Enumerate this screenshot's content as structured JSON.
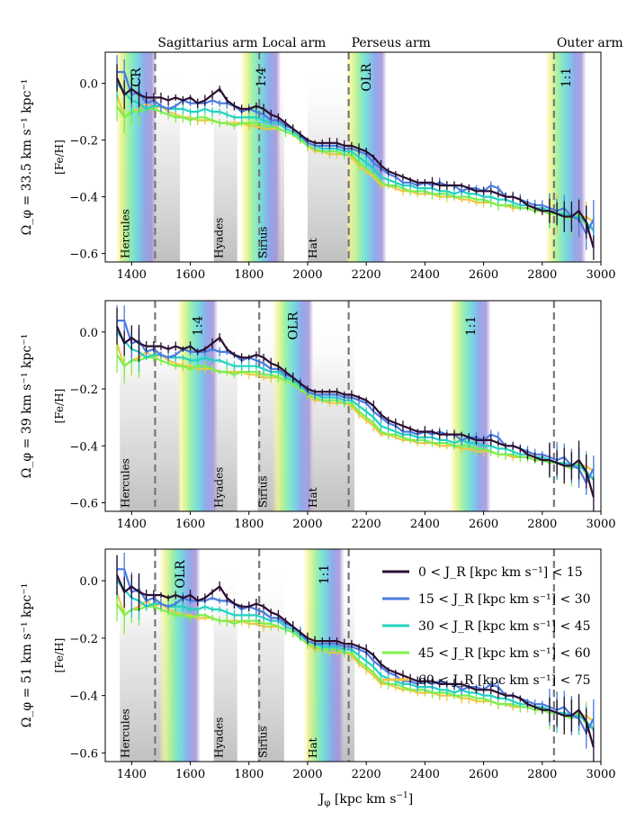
{
  "chart_data": {
    "type": "line",
    "xlabel": "J_φ [kpc km s⁻¹]",
    "ylabel": "[Fe/H]",
    "xlim": [
      1310,
      3000
    ],
    "ylim": [
      -0.63,
      0.11
    ],
    "xticks": [
      1400,
      1600,
      1800,
      2000,
      2200,
      2400,
      2600,
      2800,
      3000
    ],
    "yticks": [
      0.0,
      -0.2,
      -0.4,
      -0.6
    ],
    "ytick_labels": [
      "0.0",
      "−0.2",
      "−0.4",
      "−0.6"
    ],
    "arms": [
      {
        "name": "Sagittarius arm",
        "x": 1480
      },
      {
        "name": "Local arm",
        "x": 1835
      },
      {
        "name": "Perseus arm",
        "x": 2140
      },
      {
        "name": "Outer arm",
        "x": 2840
      }
    ],
    "legend": [
      {
        "label": "0 < J_R [kpc km s⁻¹] < 15",
        "color": "#2a0f33"
      },
      {
        "label": "15 < J_R [kpc km s⁻¹] < 30",
        "color": "#4a7be0"
      },
      {
        "label": "30 < J_R [kpc km s⁻¹] < 45",
        "color": "#22d2c0"
      },
      {
        "label": "45 < J_R [kpc km s⁻¹] < 60",
        "color": "#7cf04a"
      },
      {
        "label": "60 < J_R [kpc km s⁻¹] < 75",
        "color": "#f5c543"
      }
    ],
    "x": [
      1350,
      1375,
      1400,
      1425,
      1450,
      1475,
      1500,
      1525,
      1550,
      1575,
      1600,
      1625,
      1650,
      1675,
      1700,
      1725,
      1750,
      1775,
      1800,
      1825,
      1850,
      1875,
      1900,
      1925,
      1950,
      1975,
      2000,
      2025,
      2050,
      2075,
      2100,
      2125,
      2150,
      2175,
      2200,
      2225,
      2250,
      2275,
      2300,
      2325,
      2350,
      2375,
      2400,
      2425,
      2450,
      2475,
      2500,
      2525,
      2550,
      2575,
      2600,
      2625,
      2650,
      2675,
      2700,
      2725,
      2750,
      2775,
      2800,
      2825,
      2850,
      2875,
      2900,
      2925,
      2950,
      2975
    ],
    "series": [
      {
        "name": "0 < J_R < 15",
        "values": [
          0.02,
          -0.04,
          -0.02,
          -0.04,
          -0.05,
          -0.05,
          -0.05,
          -0.06,
          -0.05,
          -0.06,
          -0.05,
          -0.07,
          -0.06,
          -0.04,
          -0.02,
          -0.06,
          -0.08,
          -0.09,
          -0.09,
          -0.08,
          -0.09,
          -0.11,
          -0.12,
          -0.14,
          -0.16,
          -0.18,
          -0.2,
          -0.21,
          -0.21,
          -0.21,
          -0.21,
          -0.22,
          -0.22,
          -0.23,
          -0.24,
          -0.26,
          -0.29,
          -0.31,
          -0.32,
          -0.33,
          -0.34,
          -0.35,
          -0.35,
          -0.35,
          -0.36,
          -0.36,
          -0.36,
          -0.36,
          -0.37,
          -0.38,
          -0.38,
          -0.38,
          -0.39,
          -0.4,
          -0.4,
          -0.41,
          -0.43,
          -0.44,
          -0.45,
          -0.45,
          -0.46,
          -0.47,
          -0.47,
          -0.45,
          -0.49,
          -0.58
        ]
      },
      {
        "name": "15 < J_R < 30",
        "values": [
          0.04,
          0.04,
          -0.04,
          -0.03,
          -0.07,
          -0.06,
          -0.08,
          -0.09,
          -0.08,
          -0.06,
          -0.07,
          -0.07,
          -0.07,
          -0.06,
          -0.07,
          -0.07,
          -0.08,
          -0.1,
          -0.09,
          -0.1,
          -0.11,
          -0.13,
          -0.13,
          -0.15,
          -0.16,
          -0.18,
          -0.21,
          -0.22,
          -0.22,
          -0.22,
          -0.22,
          -0.23,
          -0.23,
          -0.24,
          -0.25,
          -0.28,
          -0.3,
          -0.32,
          -0.33,
          -0.35,
          -0.35,
          -0.36,
          -0.35,
          -0.36,
          -0.35,
          -0.36,
          -0.36,
          -0.38,
          -0.37,
          -0.37,
          -0.38,
          -0.36,
          -0.37,
          -0.4,
          -0.4,
          -0.41,
          -0.42,
          -0.43,
          -0.43,
          -0.44,
          -0.45,
          -0.44,
          -0.47,
          -0.48,
          -0.53,
          -0.48
        ]
      },
      {
        "name": "30 < J_R < 45",
        "values": [
          0.0,
          -0.03,
          -0.06,
          -0.07,
          -0.09,
          -0.08,
          -0.08,
          -0.09,
          -0.09,
          -0.09,
          -0.1,
          -0.1,
          -0.09,
          -0.1,
          -0.1,
          -0.11,
          -0.12,
          -0.12,
          -0.12,
          -0.12,
          -0.13,
          -0.14,
          -0.14,
          -0.16,
          -0.17,
          -0.19,
          -0.21,
          -0.22,
          -0.23,
          -0.23,
          -0.23,
          -0.24,
          -0.24,
          -0.26,
          -0.28,
          -0.3,
          -0.33,
          -0.34,
          -0.35,
          -0.36,
          -0.36,
          -0.37,
          -0.37,
          -0.37,
          -0.38,
          -0.38,
          -0.39,
          -0.38,
          -0.39,
          -0.39,
          -0.4,
          -0.4,
          -0.41,
          -0.41,
          -0.42,
          -0.43,
          -0.43,
          -0.44,
          -0.44,
          -0.45,
          -0.46,
          -0.46,
          -0.47,
          -0.47,
          -0.49,
          -0.52
        ]
      },
      {
        "name": "45 < J_R < 60",
        "values": [
          -0.08,
          -0.12,
          -0.1,
          -0.1,
          -0.09,
          -0.09,
          -0.1,
          -0.11,
          -0.12,
          -0.12,
          -0.13,
          -0.12,
          -0.12,
          -0.13,
          -0.14,
          -0.14,
          -0.15,
          -0.14,
          -0.14,
          -0.14,
          -0.15,
          -0.15,
          -0.16,
          -0.17,
          -0.18,
          -0.2,
          -0.22,
          -0.23,
          -0.24,
          -0.24,
          -0.24,
          -0.25,
          -0.25,
          -0.28,
          -0.3,
          -0.32,
          -0.35,
          -0.36,
          -0.36,
          -0.37,
          -0.38,
          -0.38,
          -0.38,
          -0.39,
          -0.39,
          -0.39,
          -0.4,
          -0.4,
          -0.4,
          -0.41,
          -0.41,
          -0.42,
          -0.43,
          -0.43,
          -0.43,
          -0.44,
          -0.44,
          -0.45,
          -0.45,
          -0.46,
          -0.46,
          -0.47,
          -0.48,
          -0.46,
          -0.5,
          -0.51
        ]
      },
      {
        "name": "60 < J_R < 75",
        "values": [
          -0.04,
          -0.12,
          -0.1,
          -0.09,
          -0.07,
          -0.09,
          -0.08,
          -0.1,
          -0.11,
          -0.12,
          -0.12,
          -0.13,
          -0.13,
          -0.13,
          -0.14,
          -0.14,
          -0.14,
          -0.14,
          -0.15,
          -0.15,
          -0.16,
          -0.16,
          -0.16,
          -0.17,
          -0.18,
          -0.2,
          -0.22,
          -0.24,
          -0.24,
          -0.25,
          -0.25,
          -0.25,
          -0.26,
          -0.29,
          -0.31,
          -0.33,
          -0.36,
          -0.36,
          -0.37,
          -0.38,
          -0.38,
          -0.39,
          -0.39,
          -0.39,
          -0.4,
          -0.4,
          -0.4,
          -0.41,
          -0.41,
          -0.42,
          -0.42,
          -0.42,
          -0.43,
          -0.43,
          -0.44,
          -0.44,
          -0.44,
          -0.45,
          -0.45,
          -0.45,
          -0.46,
          -0.47,
          -0.47,
          -0.47,
          -0.47,
          -0.49
        ]
      }
    ],
    "panels": [
      {
        "ylabel": "Ω_φ = 33.5 km s⁻¹ kpc⁻¹",
        "moving_groups": [
          {
            "name": "Hercules",
            "x0": 1360,
            "x1": 1565
          },
          {
            "name": "Hyades",
            "x0": 1680,
            "x1": 1760
          },
          {
            "name": "Sirius",
            "x0": 1830,
            "x1": 1920
          },
          {
            "name": "Hat",
            "x0": 2000,
            "x1": 2160
          }
        ],
        "resonances": [
          {
            "name": "CR",
            "x": 1415
          },
          {
            "name": "1:4",
            "x": 1840
          },
          {
            "name": "OLR",
            "x": 2200
          },
          {
            "name": "1:1",
            "x": 2880
          }
        ]
      },
      {
        "ylabel": "Ω_φ = 39 km s⁻¹ kpc⁻¹",
        "moving_groups": [
          {
            "name": "Hercules",
            "x0": 1360,
            "x1": 1565
          },
          {
            "name": "Hyades",
            "x0": 1680,
            "x1": 1760
          },
          {
            "name": "Sirius",
            "x0": 1830,
            "x1": 1920
          },
          {
            "name": "Hat",
            "x0": 2000,
            "x1": 2160
          }
        ],
        "resonances": [
          {
            "name": "1:4",
            "x": 1625
          },
          {
            "name": "OLR",
            "x": 1950
          },
          {
            "name": "1:1",
            "x": 2555
          }
        ]
      },
      {
        "ylabel": "Ω_φ = 51 km s⁻¹ kpc⁻¹",
        "moving_groups": [
          {
            "name": "Hercules",
            "x0": 1360,
            "x1": 1565
          },
          {
            "name": "Hyades",
            "x0": 1680,
            "x1": 1760
          },
          {
            "name": "Sirius",
            "x0": 1830,
            "x1": 1920
          },
          {
            "name": "Hat",
            "x0": 2000,
            "x1": 2160
          }
        ],
        "resonances": [
          {
            "name": "OLR",
            "x": 1565
          },
          {
            "name": "1:1",
            "x": 2055
          }
        ]
      }
    ]
  }
}
